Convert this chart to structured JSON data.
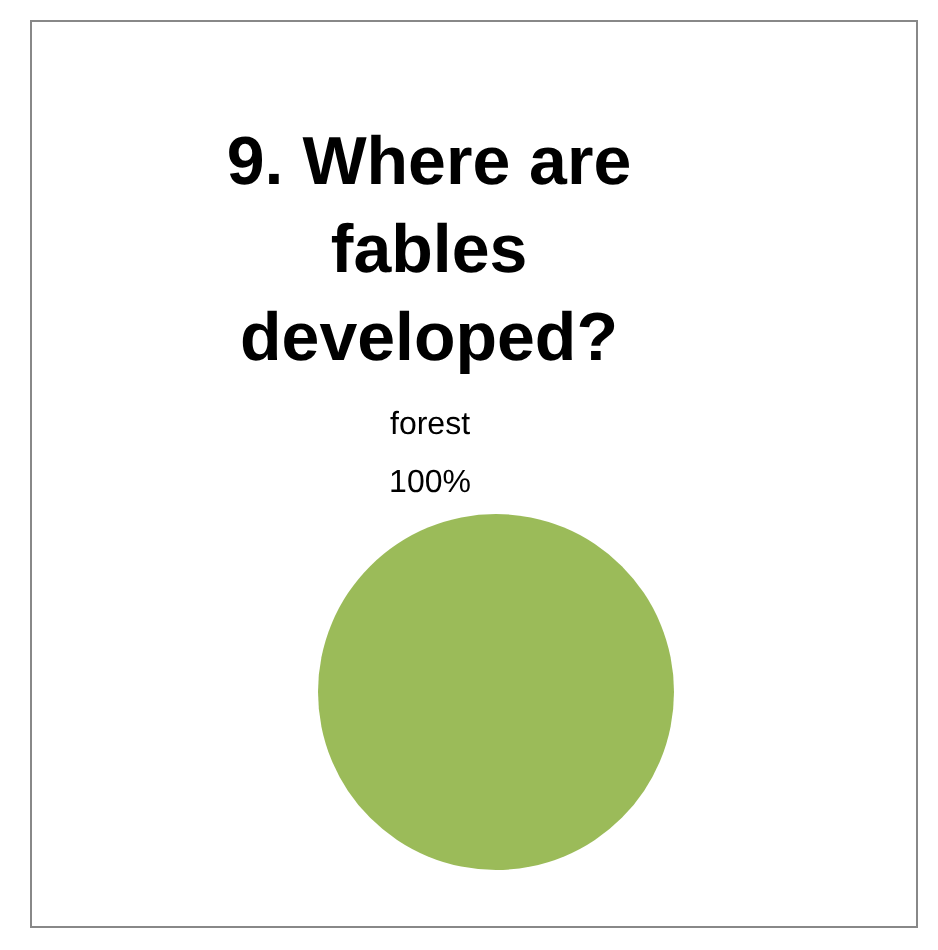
{
  "chart_data": {
    "type": "pie",
    "title": "9. Where are fables developed?",
    "categories": [
      "forest"
    ],
    "values": [
      100
    ],
    "value_labels": [
      "100%"
    ],
    "colors": [
      "#9bbb59"
    ],
    "legend": false
  }
}
